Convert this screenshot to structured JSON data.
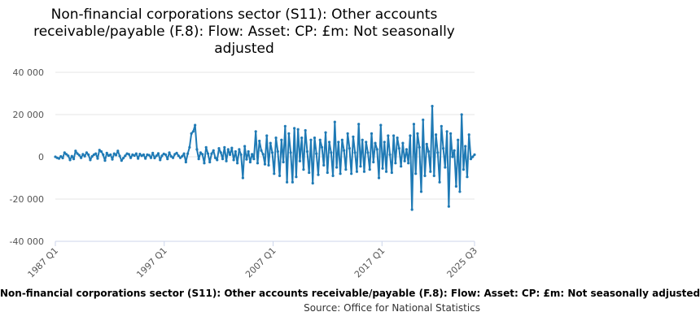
{
  "chart_data": {
    "type": "line",
    "title": "Non-financial corporations sector (S11): Other accounts receivable/payable (F.8): Flow: Asset: CP: £m: Not seasonally adjusted",
    "xlabel": "",
    "ylabel": "",
    "y_ticks": [
      "40 000",
      "20 000",
      "0",
      "-20 000",
      "-40 000"
    ],
    "x_ticks": [
      "1987 Q1",
      "1997 Q1",
      "2007 Q1",
      "2017 Q1",
      "2025 Q3"
    ],
    "ylim": [
      -40000,
      40000
    ],
    "x_start": "1987 Q1",
    "x_end": "2025 Q3",
    "grid": true,
    "legend_placement": "bottom",
    "series": [
      {
        "name": "Non-financial corporations sector (S11): Other accounts receivable/payable (F.8): Flow: Asset: CP: £m: Not seasonally adjusted",
        "color": "#1f7ab5",
        "values": [
          0,
          -500,
          -800,
          200,
          -600,
          2000,
          1200,
          500,
          -1500,
          300,
          -1000,
          2800,
          1500,
          800,
          -500,
          1200,
          300,
          2000,
          1000,
          -1500,
          200,
          1000,
          1500,
          -800,
          3200,
          2500,
          1000,
          -1800,
          1800,
          600,
          1000,
          -1200,
          1500,
          800,
          2800,
          400,
          -1800,
          -600,
          500,
          1500,
          1200,
          -500,
          1000,
          600,
          1500,
          -800,
          1300,
          500,
          1000,
          -800,
          1000,
          800,
          -500,
          1800,
          -600,
          500,
          1600,
          -1500,
          500,
          1400,
          1000,
          -1000,
          2000,
          200,
          -500,
          1200,
          1800,
          500,
          -500,
          300,
          1500,
          -2500,
          1500,
          4500,
          11000,
          12000,
          15000,
          3500,
          -1000,
          2000,
          1200,
          -3000,
          4500,
          1500,
          -2500,
          1500,
          3000,
          -500,
          -1500,
          4000,
          2000,
          -1000,
          4500,
          -2000,
          3500,
          1000,
          4200,
          -1500,
          2500,
          -3000,
          3500,
          1000,
          -10000,
          5000,
          -1200,
          2500,
          -2500,
          1200,
          -1000,
          12000,
          -3000,
          7500,
          3000,
          1200,
          -3500,
          10000,
          -4000,
          6500,
          2000,
          -8000,
          9000,
          2500,
          -9000,
          8000,
          -2500,
          14500,
          -12000,
          11000,
          2000,
          -12000,
          13500,
          -9500,
          13000,
          -2000,
          9000,
          -6000,
          12500,
          2500,
          -7500,
          8000,
          -12500,
          9000,
          1500,
          -8500,
          8000,
          4500,
          -4000,
          11500,
          -7500,
          7000,
          2000,
          -9000,
          16500,
          -5000,
          7000,
          -8000,
          8000,
          3000,
          -6000,
          11000,
          4000,
          -8000,
          9500,
          2000,
          -7000,
          15500,
          -4500,
          8000,
          -7000,
          7000,
          2000,
          -6000,
          11000,
          -2500,
          6500,
          3500,
          -10000,
          15000,
          -5500,
          7000,
          -7000,
          10000,
          1000,
          -7500,
          10000,
          -3000,
          9000,
          4000,
          -4500,
          6500,
          -2000,
          3500,
          -3000,
          10000,
          -25000,
          15500,
          -8000,
          11000,
          4500,
          -16500,
          17500,
          -9000,
          6000,
          2500,
          -7000,
          24000,
          -9000,
          10500,
          2000,
          -12000,
          14500,
          4000,
          -5000,
          12000,
          -23500,
          11000,
          0,
          3000,
          -14000,
          8000,
          -16500,
          20000,
          -6000,
          5000,
          -9500,
          10500,
          -1000,
          0,
          1000
        ]
      }
    ]
  },
  "legend_text": "Non-financial corporations sector (S11): Other accounts receivable/payable (F.8): Flow: Asset: CP: £m: Not seasonally adjusted",
  "source_text": "Source: Office for National Statistics"
}
